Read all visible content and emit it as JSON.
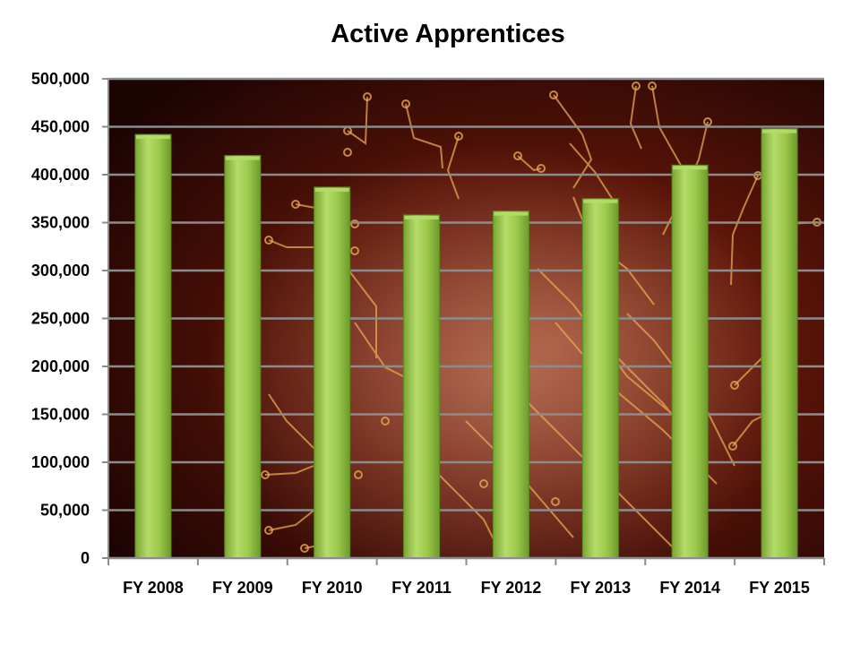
{
  "chart_data": {
    "type": "bar",
    "title": "Active Apprentices",
    "categories": [
      "FY 2008",
      "FY 2009",
      "FY 2010",
      "FY 2011",
      "FY 2012",
      "FY 2013",
      "FY 2014",
      "FY 2015"
    ],
    "series": [
      {
        "values": [
          442000,
          420000,
          387000,
          358000,
          362000,
          375000,
          410000,
          448000
        ]
      }
    ],
    "yticks": [
      "0",
      "50,000",
      "100,000",
      "150,000",
      "200,000",
      "250,000",
      "300,000",
      "350,000",
      "400,000",
      "450,000",
      "500,000"
    ],
    "ylim": [
      0,
      500000
    ],
    "grid": true,
    "colors": {
      "bar": "#8dbb3f",
      "bar_highlight": "#b4dc6a",
      "plot_bg": "#4a0c06",
      "grid": "#8c8c8c",
      "circuit": "#e8a850"
    }
  }
}
